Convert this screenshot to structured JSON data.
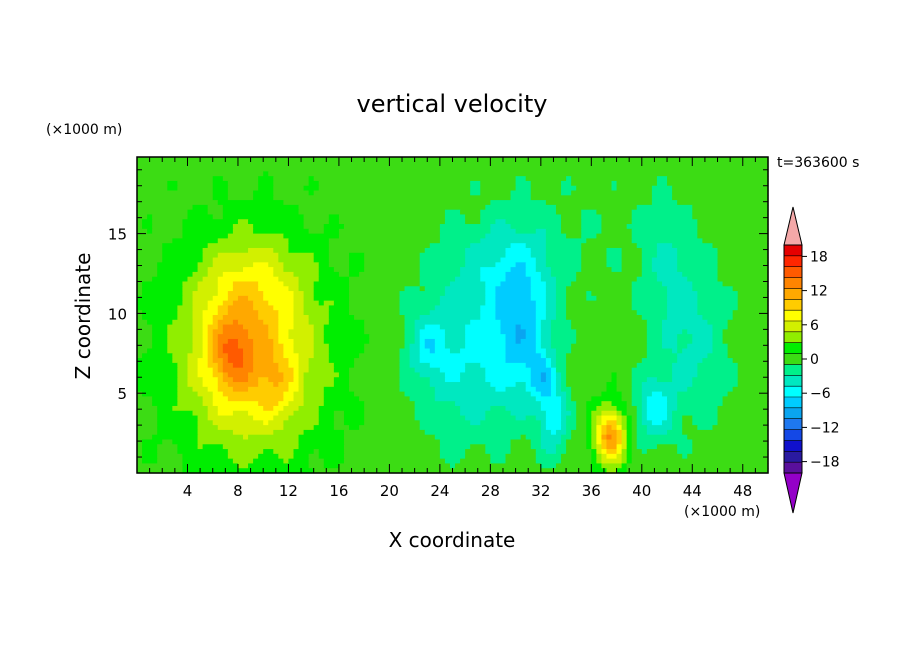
{
  "chart_data": {
    "type": "heatmap",
    "title": "vertical velocity",
    "time_label": "t=363600 s",
    "xlabel": "X coordinate",
    "ylabel": "Z coordinate",
    "x_unit": "(×1000 m)",
    "y_unit": "(×1000 m)",
    "xlim": [
      0,
      50
    ],
    "ylim": [
      0,
      19.8
    ],
    "x_ticks": [
      4,
      8,
      12,
      16,
      20,
      24,
      28,
      32,
      36,
      40,
      44,
      48
    ],
    "y_ticks": [
      5,
      10,
      15
    ],
    "colorbar": {
      "levels": [
        -20,
        -18,
        -16,
        -14,
        -12,
        -10,
        -8,
        -6,
        -4,
        -2,
        0,
        2,
        4,
        6,
        8,
        10,
        12,
        14,
        16,
        18,
        20
      ],
      "tick_labels": [
        18,
        12,
        6,
        0,
        -6,
        -12,
        -18
      ],
      "colors": [
        "#5a0f9c",
        "#2a1aa0",
        "#1010cc",
        "#1448e6",
        "#1e78f0",
        "#0aa5f0",
        "#00ccff",
        "#00ffff",
        "#00e8c0",
        "#00f08a",
        "#3cdc14",
        "#00ee00",
        "#90ee00",
        "#d2f000",
        "#ffff00",
        "#ffcc00",
        "#ffa800",
        "#ff8400",
        "#ff5a00",
        "#ff2600",
        "#e60000"
      ],
      "under_color": "#9400c8",
      "over_color": "#f4a8a8"
    },
    "features": [
      {
        "x": 9,
        "z": 7.5,
        "sx": 5.5,
        "sz": 6,
        "amp": 10
      },
      {
        "x": 7.5,
        "z": 7.5,
        "sx": 1.8,
        "sz": 2.5,
        "amp": 6
      },
      {
        "x": 11,
        "z": 5.5,
        "sx": 1.5,
        "sz": 2,
        "amp": 3
      },
      {
        "x": 9,
        "z": 12,
        "sx": 4,
        "sz": 3,
        "amp": 3
      },
      {
        "x": 37.5,
        "z": 2.3,
        "sx": 1.2,
        "sz": 1.8,
        "amp": 13
      },
      {
        "x": 26,
        "z": 7,
        "sx": 4,
        "sz": 5,
        "amp": -5
      },
      {
        "x": 30.5,
        "z": 9,
        "sx": 2.5,
        "sz": 4.5,
        "amp": -7
      },
      {
        "x": 33,
        "z": 3.5,
        "sx": 1.2,
        "sz": 2.5,
        "amp": -6
      },
      {
        "x": 32,
        "z": 6,
        "sx": 1,
        "sz": 1.5,
        "amp": -4
      },
      {
        "x": 23,
        "z": 8,
        "sx": 1.5,
        "sz": 2,
        "amp": -4
      },
      {
        "x": 41,
        "z": 4,
        "sx": 1.5,
        "sz": 2,
        "amp": -6
      },
      {
        "x": 44,
        "z": 8,
        "sx": 3,
        "sz": 5,
        "amp": -3.5
      },
      {
        "x": 42,
        "z": 13,
        "sx": 2,
        "sz": 4,
        "amp": -2.5
      },
      {
        "x": 29,
        "z": 13,
        "sx": 4,
        "sz": 3,
        "amp": -3
      },
      {
        "x": 34,
        "z": 15,
        "sx": 10,
        "sz": 4,
        "amp": -1
      }
    ]
  }
}
